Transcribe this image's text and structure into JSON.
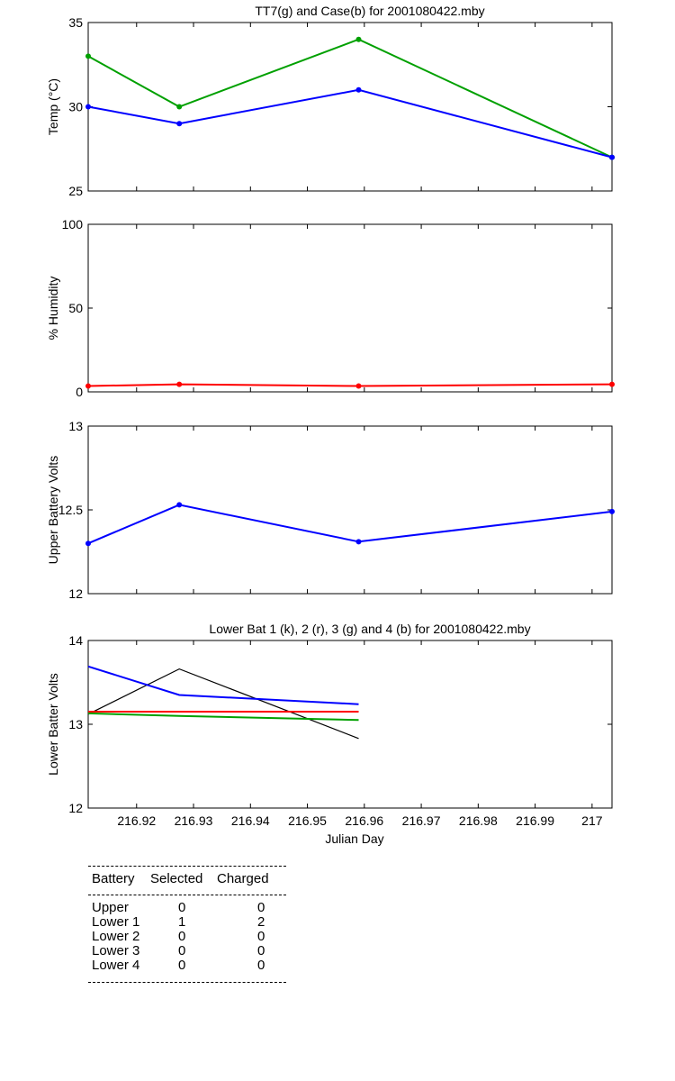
{
  "chart_data": [
    {
      "type": "line",
      "title": "TT7(g) and Case(b) for 2001080422.mby",
      "ylabel": "Temp  (°C)",
      "xlim": [
        216.9115,
        217.0035
      ],
      "ylim": [
        25,
        35
      ],
      "yticks": [
        "25",
        "30",
        "35"
      ],
      "x": [
        216.9115,
        216.9275,
        216.959,
        217.0035
      ],
      "series": [
        {
          "color": "#00a000",
          "values": [
            33,
            30,
            34,
            27
          ]
        },
        {
          "color": "#0000ff",
          "values": [
            30,
            29,
            31,
            27
          ]
        }
      ]
    },
    {
      "type": "line",
      "ylabel": "% Humidity",
      "xlim": [
        216.9115,
        217.0035
      ],
      "ylim": [
        0,
        100
      ],
      "yticks": [
        "0",
        "50",
        "100"
      ],
      "x": [
        216.9115,
        216.9275,
        216.959,
        217.0035
      ],
      "series": [
        {
          "color": "#ff0000",
          "values": [
            3.5,
            4.5,
            3.5,
            4.5
          ]
        }
      ]
    },
    {
      "type": "line",
      "ylabel": "Upper Battery Volts",
      "xlim": [
        216.9115,
        217.0035
      ],
      "ylim": [
        12,
        13
      ],
      "yticks": [
        "12",
        "12.5",
        "13"
      ],
      "x": [
        216.9115,
        216.9275,
        216.959,
        217.0035
      ],
      "series": [
        {
          "color": "#0000ff",
          "values": [
            12.3,
            12.53,
            12.31,
            12.49
          ]
        }
      ]
    },
    {
      "type": "line",
      "title": "Lower Bat 1 (k), 2 (r), 3 (g) and 4 (b) for 2001080422.mby",
      "xlabel": "Julian Day",
      "ylabel": "Lower Batter Volts",
      "xlim": [
        216.9115,
        217.0035
      ],
      "ylim": [
        12,
        14
      ],
      "yticks": [
        "12",
        "13",
        "14"
      ],
      "xticks": [
        216.92,
        216.93,
        216.94,
        216.95,
        216.96,
        216.97,
        216.98,
        216.99,
        217
      ],
      "xtick_labels": [
        "216.92",
        "216.93",
        "216.94",
        "216.95",
        "216.96",
        "216.97",
        "216.98",
        "216.99",
        "217"
      ],
      "x": [
        216.9115,
        216.9275,
        216.959
      ],
      "series": [
        {
          "color": "#000000",
          "values": [
            13.12,
            13.66,
            12.83
          ]
        },
        {
          "color": "#ff0000",
          "values": [
            13.15,
            13.15,
            13.15
          ]
        },
        {
          "color": "#00a000",
          "values": [
            13.13,
            13.1,
            13.05
          ]
        },
        {
          "color": "#0000ff",
          "values": [
            13.69,
            13.35,
            13.24
          ]
        }
      ]
    }
  ],
  "battery_table": {
    "headers": {
      "battery": "Battery",
      "selected": "Selected",
      "charged": "Charged"
    },
    "rows": [
      {
        "battery": "Upper",
        "selected": "0",
        "charged": "0"
      },
      {
        "battery": "Lower 1",
        "selected": "1",
        "charged": "2"
      },
      {
        "battery": "Lower 2",
        "selected": "0",
        "charged": "0"
      },
      {
        "battery": "Lower 3",
        "selected": "0",
        "charged": "0"
      },
      {
        "battery": "Lower 4",
        "selected": "0",
        "charged": "0"
      }
    ]
  }
}
